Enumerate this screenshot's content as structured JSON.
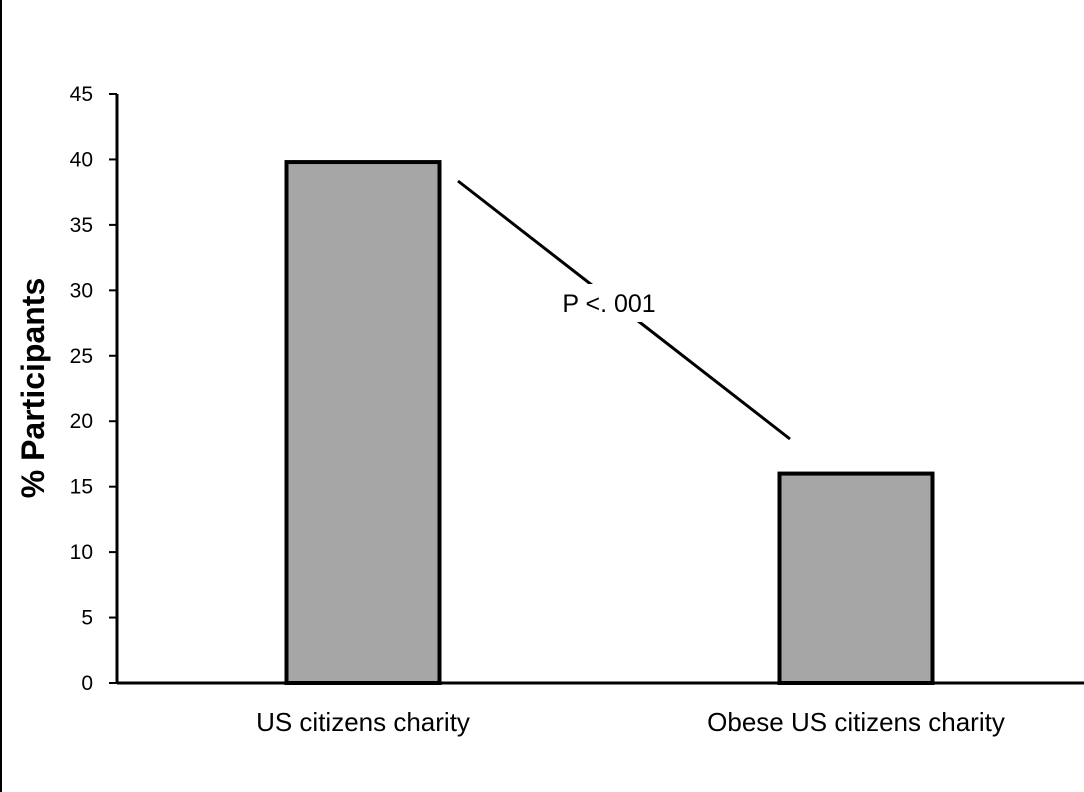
{
  "chart_data": {
    "type": "bar",
    "title": "",
    "xlabel": "",
    "ylabel": "% Participants",
    "categories": [
      "US citizens charity",
      "Obese US citizens charity"
    ],
    "values": [
      39.8,
      16
    ],
    "ylim": [
      0,
      45
    ],
    "yticks": [
      0,
      5,
      10,
      15,
      20,
      25,
      30,
      35,
      40,
      45
    ],
    "grid": false,
    "legend": "none",
    "bar_color": "#a6a6a6",
    "annotations": [
      {
        "text": "P <. 001",
        "connects": [
          "US citizens charity",
          "Obese US citizens charity"
        ]
      }
    ]
  }
}
